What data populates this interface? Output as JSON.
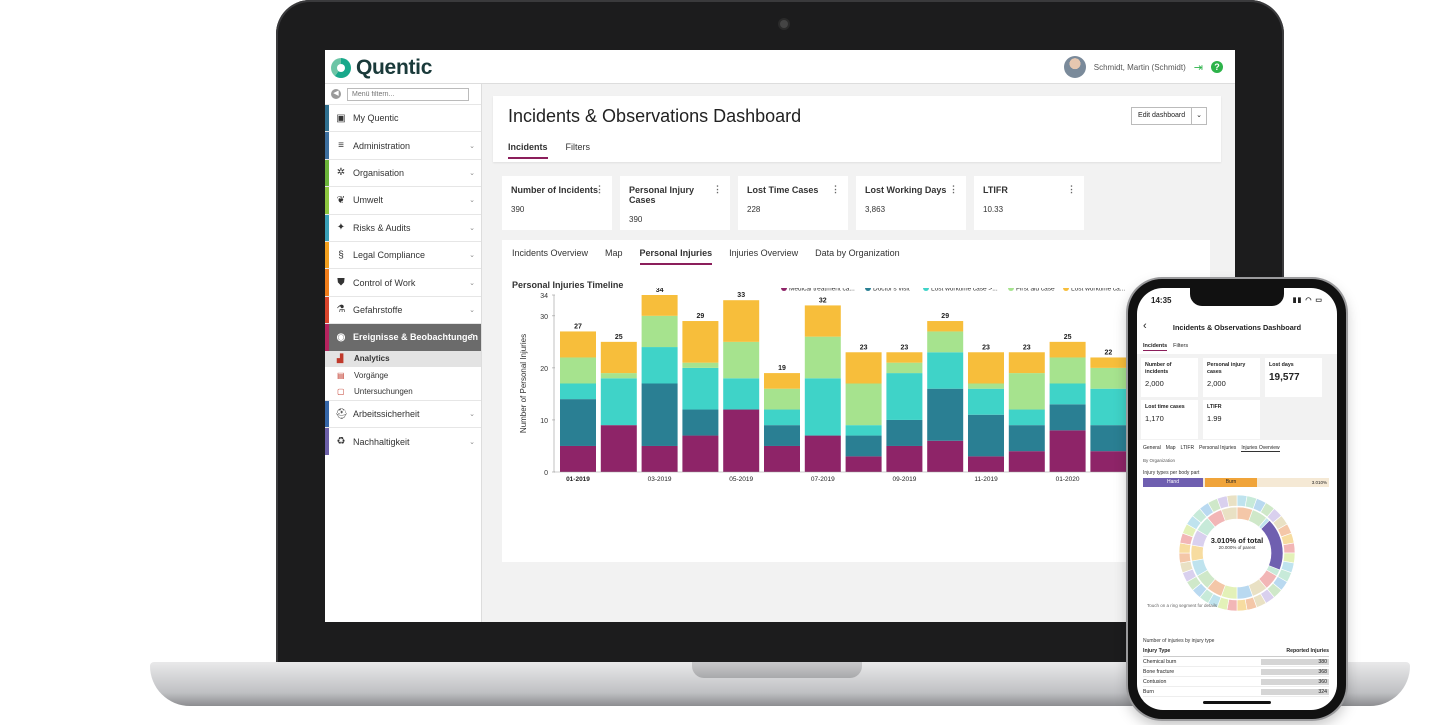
{
  "app": {
    "brand": "Quentic",
    "user_name": "Schmidt, Martin (Schmidt)"
  },
  "sidebar": {
    "filter_placeholder": "Menü filtern...",
    "items": [
      {
        "label": "My Quentic",
        "icon": "monitor-icon",
        "color": "#2f6f8f"
      },
      {
        "label": "Administration",
        "icon": "menu-icon",
        "color": "#3c6e9e"
      },
      {
        "label": "Organisation",
        "icon": "org-icon",
        "color": "#6bb43a"
      },
      {
        "label": "Umwelt",
        "icon": "leaf-icon",
        "color": "#8cc63f"
      },
      {
        "label": "Risks & Audits",
        "icon": "risk-icon",
        "color": "#3aa0b8"
      },
      {
        "label": "Legal Compliance",
        "icon": "section-icon",
        "color": "#f29f1e"
      },
      {
        "label": "Control of Work",
        "icon": "shield-icon",
        "color": "#f07d1a"
      },
      {
        "label": "Gefahrstoffe",
        "icon": "flask-icon",
        "color": "#d9452c"
      },
      {
        "label": "Ereignisse & Beobachtungen",
        "icon": "incident-icon",
        "color": "#b5235e"
      },
      {
        "label": "Arbeitssicherheit",
        "icon": "helmet-icon",
        "color": "#3566a8"
      },
      {
        "label": "Nachhaltigkeit",
        "icon": "sustain-icon",
        "color": "#6c5fa8"
      }
    ],
    "subitems": [
      "Analytics",
      "Vorgänge",
      "Untersuchungen"
    ]
  },
  "dashboard": {
    "title": "Incidents & Observations Dashboard",
    "edit_label": "Edit dashboard",
    "tabs": [
      "Incidents",
      "Filters"
    ],
    "kpis": [
      {
        "label": "Number of Incidents",
        "value": "390"
      },
      {
        "label": "Personal Injury Cases",
        "value": "390"
      },
      {
        "label": "Lost Time Cases",
        "value": "228"
      },
      {
        "label": "Lost Working Days",
        "value": "3,863"
      },
      {
        "label": "LTIFR",
        "value": "10.33"
      }
    ],
    "chart_tabs": [
      "Incidents Overview",
      "Map",
      "Personal Injuries",
      "Injuries Overview",
      "Data by Organization"
    ]
  },
  "chart_data": {
    "type": "bar",
    "stacked": true,
    "title": "Personal Injuries Timeline",
    "ylabel": "Number of Personal Injuries",
    "ylim": [
      0,
      34
    ],
    "yticks": [
      0,
      10,
      20,
      30,
      34
    ],
    "tick_labels": [
      "01-2019",
      "03-2019",
      "05-2019",
      "07-2019",
      "09-2019",
      "11-2019",
      "01-2020"
    ],
    "legend": [
      "Medical treatment ca...",
      "Doctor's visit",
      "Lost worktime case >...",
      "First aid case",
      "Lost worktime ca..."
    ],
    "colors": [
      "#8e2468",
      "#2a7f93",
      "#3fd3c8",
      "#a6e38e",
      "#f7be3b"
    ],
    "totals": [
      27,
      25,
      34,
      29,
      33,
      19,
      32,
      23,
      23,
      29,
      23,
      23,
      25,
      22
    ],
    "series": [
      {
        "name": "Medical treatment ca...",
        "values": [
          5,
          9,
          5,
          7,
          12,
          5,
          7,
          3,
          5,
          6,
          3,
          4,
          8,
          4
        ]
      },
      {
        "name": "Doctor's visit",
        "values": [
          9,
          0,
          12,
          5,
          0,
          4,
          0,
          4,
          5,
          10,
          8,
          5,
          5,
          5
        ]
      },
      {
        "name": "Lost worktime case >...",
        "values": [
          3,
          9,
          7,
          8,
          6,
          3,
          11,
          2,
          9,
          7,
          5,
          3,
          4,
          7
        ]
      },
      {
        "name": "First aid case",
        "values": [
          5,
          1,
          6,
          1,
          7,
          4,
          8,
          8,
          2,
          4,
          1,
          7,
          5,
          4
        ]
      },
      {
        "name": "Lost worktime ca...",
        "values": [
          5,
          6,
          4,
          8,
          8,
          3,
          6,
          6,
          2,
          2,
          6,
          4,
          3,
          2
        ]
      }
    ]
  },
  "phone": {
    "time": "14:35",
    "title": "Incidents & Observations Dashboard",
    "tabs": [
      "Incidents",
      "Filters"
    ],
    "kpis": [
      {
        "label": "Number of incidents",
        "value": "2,000"
      },
      {
        "label": "Personal injury cases",
        "value": "2,000"
      },
      {
        "label": "Lost days",
        "value": "19,577"
      },
      {
        "label": "Lost time cases",
        "value": "1,170"
      },
      {
        "label": "LTIFR",
        "value": "1.99"
      }
    ],
    "subtabs": [
      "General",
      "Map",
      "LTIFR",
      "Personal Injuries",
      "Injuries Overview"
    ],
    "by_org": "By Organization",
    "sunburst_title": "Injury types per body part",
    "crumb_hand": "Hand",
    "crumb_burn": "Burn",
    "crumb_pct": "3.010%",
    "center_main": "3.010% of total",
    "center_sub": "20.000% of parent",
    "hint": "Touch on a ring segment for details",
    "table_title": "Number of injuries by injury type",
    "table_headers": [
      "Injury Type",
      "Reported Injuries"
    ],
    "rows": [
      {
        "type": "Chemical burn",
        "value": "380"
      },
      {
        "type": "Bone fracture",
        "value": "368"
      },
      {
        "type": "Contusion",
        "value": "360"
      },
      {
        "type": "Burn",
        "value": "324"
      }
    ]
  }
}
